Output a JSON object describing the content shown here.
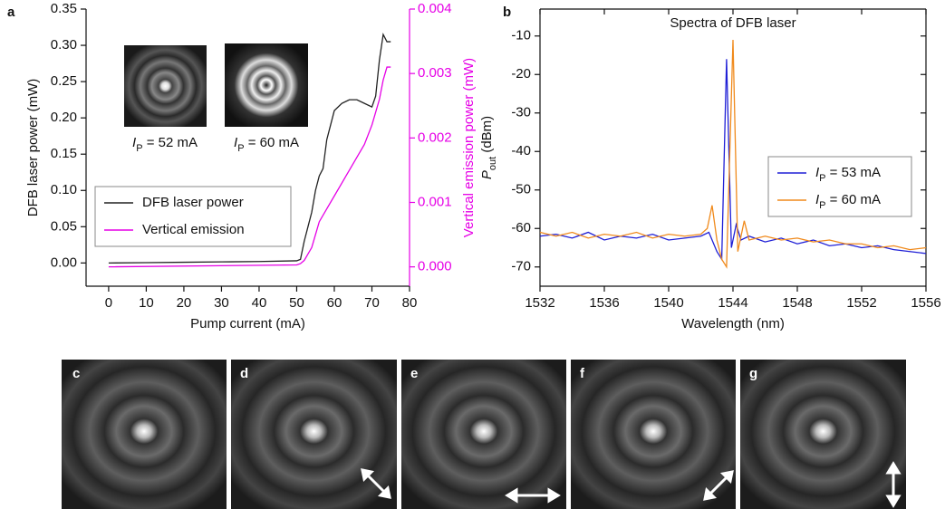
{
  "chart_data": [
    {
      "type": "line",
      "panel_label": "a",
      "xlabel": "Pump current (mA)",
      "ylabel": "DFB laser power (mW)",
      "y2label": "Vertical emission power (mW)",
      "y2color": "#e600e6",
      "xlim": [
        -6,
        80
      ],
      "xticks": [
        0,
        10,
        20,
        30,
        40,
        50,
        60,
        70,
        80
      ],
      "ylim": [
        -0.032,
        0.35
      ],
      "yticks": [
        {
          "value": 0,
          "label": "0.00"
        },
        0.05,
        {
          "value": 0.1,
          "label": "0.10"
        },
        0.15,
        {
          "value": 0.2,
          "label": "0.20"
        },
        0.25,
        {
          "value": 0.3,
          "label": "0.30"
        },
        0.35
      ],
      "y2lim": [
        -0.0003,
        0.004
      ],
      "y2ticks": [
        {
          "value": 0,
          "label": "0.000"
        },
        0.001,
        0.002,
        0.003,
        0.004
      ],
      "legend": "lower left",
      "insets": [
        {
          "main": "I",
          "sub": "P",
          "rest": " = 52 mA"
        },
        {
          "main": "I",
          "sub": "P",
          "rest": " = 60 mA"
        }
      ],
      "series": [
        {
          "name": "DFB laser power",
          "color": "#222222",
          "x": [
            0,
            10,
            20,
            30,
            40,
            50,
            51,
            52,
            53,
            54,
            55,
            56,
            57,
            58,
            59,
            60,
            62,
            64,
            66,
            68,
            70,
            71,
            72,
            73,
            74,
            75
          ],
          "values": [
            0,
            0.0005,
            0.001,
            0.0015,
            0.002,
            0.003,
            0.005,
            0.03,
            0.05,
            0.07,
            0.1,
            0.12,
            0.13,
            0.17,
            0.19,
            0.21,
            0.22,
            0.225,
            0.225,
            0.22,
            0.215,
            0.23,
            0.28,
            0.315,
            0.305,
            0.305
          ]
        },
        {
          "name": "Vertical emission",
          "color": "#e600e6",
          "axis": "y2",
          "x": [
            0,
            50,
            51,
            52,
            53,
            54,
            55,
            56,
            58,
            60,
            62,
            64,
            66,
            68,
            70,
            72,
            73,
            74,
            75
          ],
          "values": [
            0,
            3e-05,
            5e-05,
            0.0001,
            0.0002,
            0.0003,
            0.0005,
            0.0007,
            0.0009,
            0.0011,
            0.0013,
            0.0015,
            0.0017,
            0.0019,
            0.0022,
            0.0026,
            0.0029,
            0.0031,
            0.0031
          ]
        }
      ]
    },
    {
      "type": "line",
      "panel_label": "b",
      "title": "Spectra of DFB laser",
      "xlabel": "Wavelength (nm)",
      "ylabel": {
        "main": "P",
        "sub": "out",
        "rest": " (dBm)"
      },
      "xlim": [
        1532,
        1556
      ],
      "xticks": [
        1532,
        1536,
        1540,
        1544,
        1548,
        1552,
        1556
      ],
      "ylim": [
        -75,
        -3
      ],
      "yticks": [
        -10,
        -20,
        -30,
        -40,
        -50,
        -60,
        -70
      ],
      "legend": "center right",
      "series": [
        {
          "name": {
            "main": "I",
            "sub": "P",
            "rest": " = 53 mA"
          },
          "color": "#1f1fd6",
          "x": [
            1532,
            1533,
            1534,
            1535,
            1536,
            1537,
            1538,
            1539,
            1540,
            1541,
            1542,
            1542.5,
            1543,
            1543.3,
            1543.6,
            1543.9,
            1544.2,
            1544.5,
            1545,
            1546,
            1547,
            1548,
            1549,
            1550,
            1551,
            1552,
            1553,
            1554,
            1555,
            1556
          ],
          "values": [
            -62,
            -61.5,
            -62.5,
            -61,
            -63,
            -62,
            -62.5,
            -61.5,
            -63,
            -62.5,
            -62,
            -61,
            -66,
            -68,
            -16,
            -65,
            -59,
            -63,
            -62,
            -63.5,
            -62.5,
            -64,
            -63,
            -64.5,
            -64,
            -65,
            -64.5,
            -65.5,
            -66,
            -66.5
          ]
        },
        {
          "name": {
            "main": "I",
            "sub": "P",
            "rest": " = 60 mA"
          },
          "color": "#f08a1c",
          "x": [
            1532,
            1533,
            1534,
            1535,
            1536,
            1537,
            1538,
            1539,
            1540,
            1541,
            1542,
            1542.4,
            1542.7,
            1543,
            1543.3,
            1543.6,
            1544,
            1544.3,
            1544.7,
            1545,
            1546,
            1547,
            1548,
            1549,
            1550,
            1551,
            1552,
            1553,
            1554,
            1555,
            1556
          ],
          "values": [
            -61,
            -62,
            -61,
            -62.5,
            -61.5,
            -62,
            -61,
            -62.5,
            -61.5,
            -62,
            -61.5,
            -60,
            -54,
            -63,
            -68,
            -70,
            -11,
            -66,
            -58,
            -63,
            -62,
            -63,
            -62.5,
            -63.5,
            -63,
            -64,
            -64,
            -65,
            -64.5,
            -65.5,
            -65
          ]
        }
      ]
    }
  ],
  "image_panels": [
    "c",
    "d",
    "e",
    "f",
    "g"
  ]
}
